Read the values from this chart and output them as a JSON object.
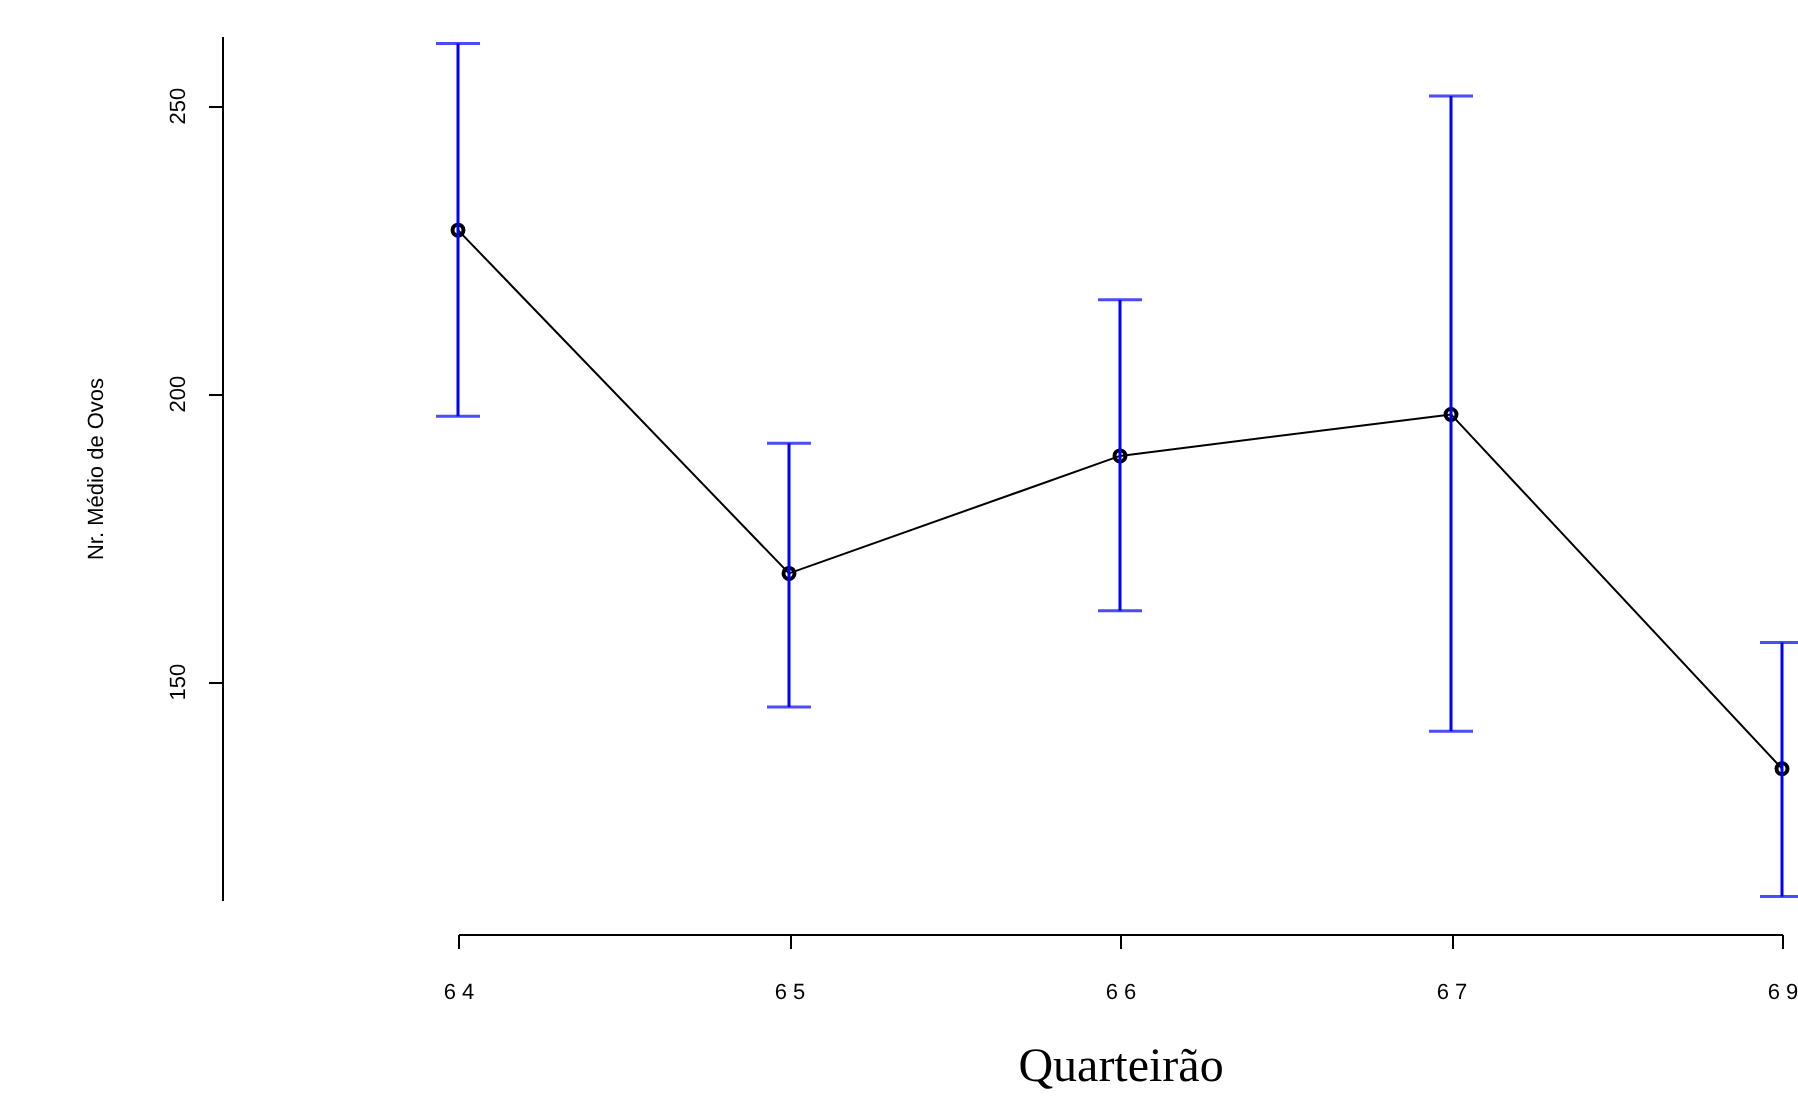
{
  "chart_data": {
    "type": "line",
    "xlabel": "Quarteirão",
    "ylabel": "Nr. Médio de Ovos",
    "categories": [
      "6 4",
      "6 5",
      "6 6",
      "6 7",
      "6 9"
    ],
    "series": [
      {
        "color": "#000000",
        "values": [
          228.3,
          168.7,
          189.1,
          196.3,
          134.8
        ],
        "errors": [
          [
            196.0,
            260.7
          ],
          [
            145.5,
            191.3
          ],
          [
            162.2,
            216.2
          ],
          [
            141.3,
            251.6
          ],
          [
            112.6,
            156.7
          ]
        ]
      }
    ],
    "ylim": [
      112,
      262
    ],
    "yticks": [
      150,
      200,
      250
    ],
    "marker": "circle",
    "line_style": "solid"
  }
}
